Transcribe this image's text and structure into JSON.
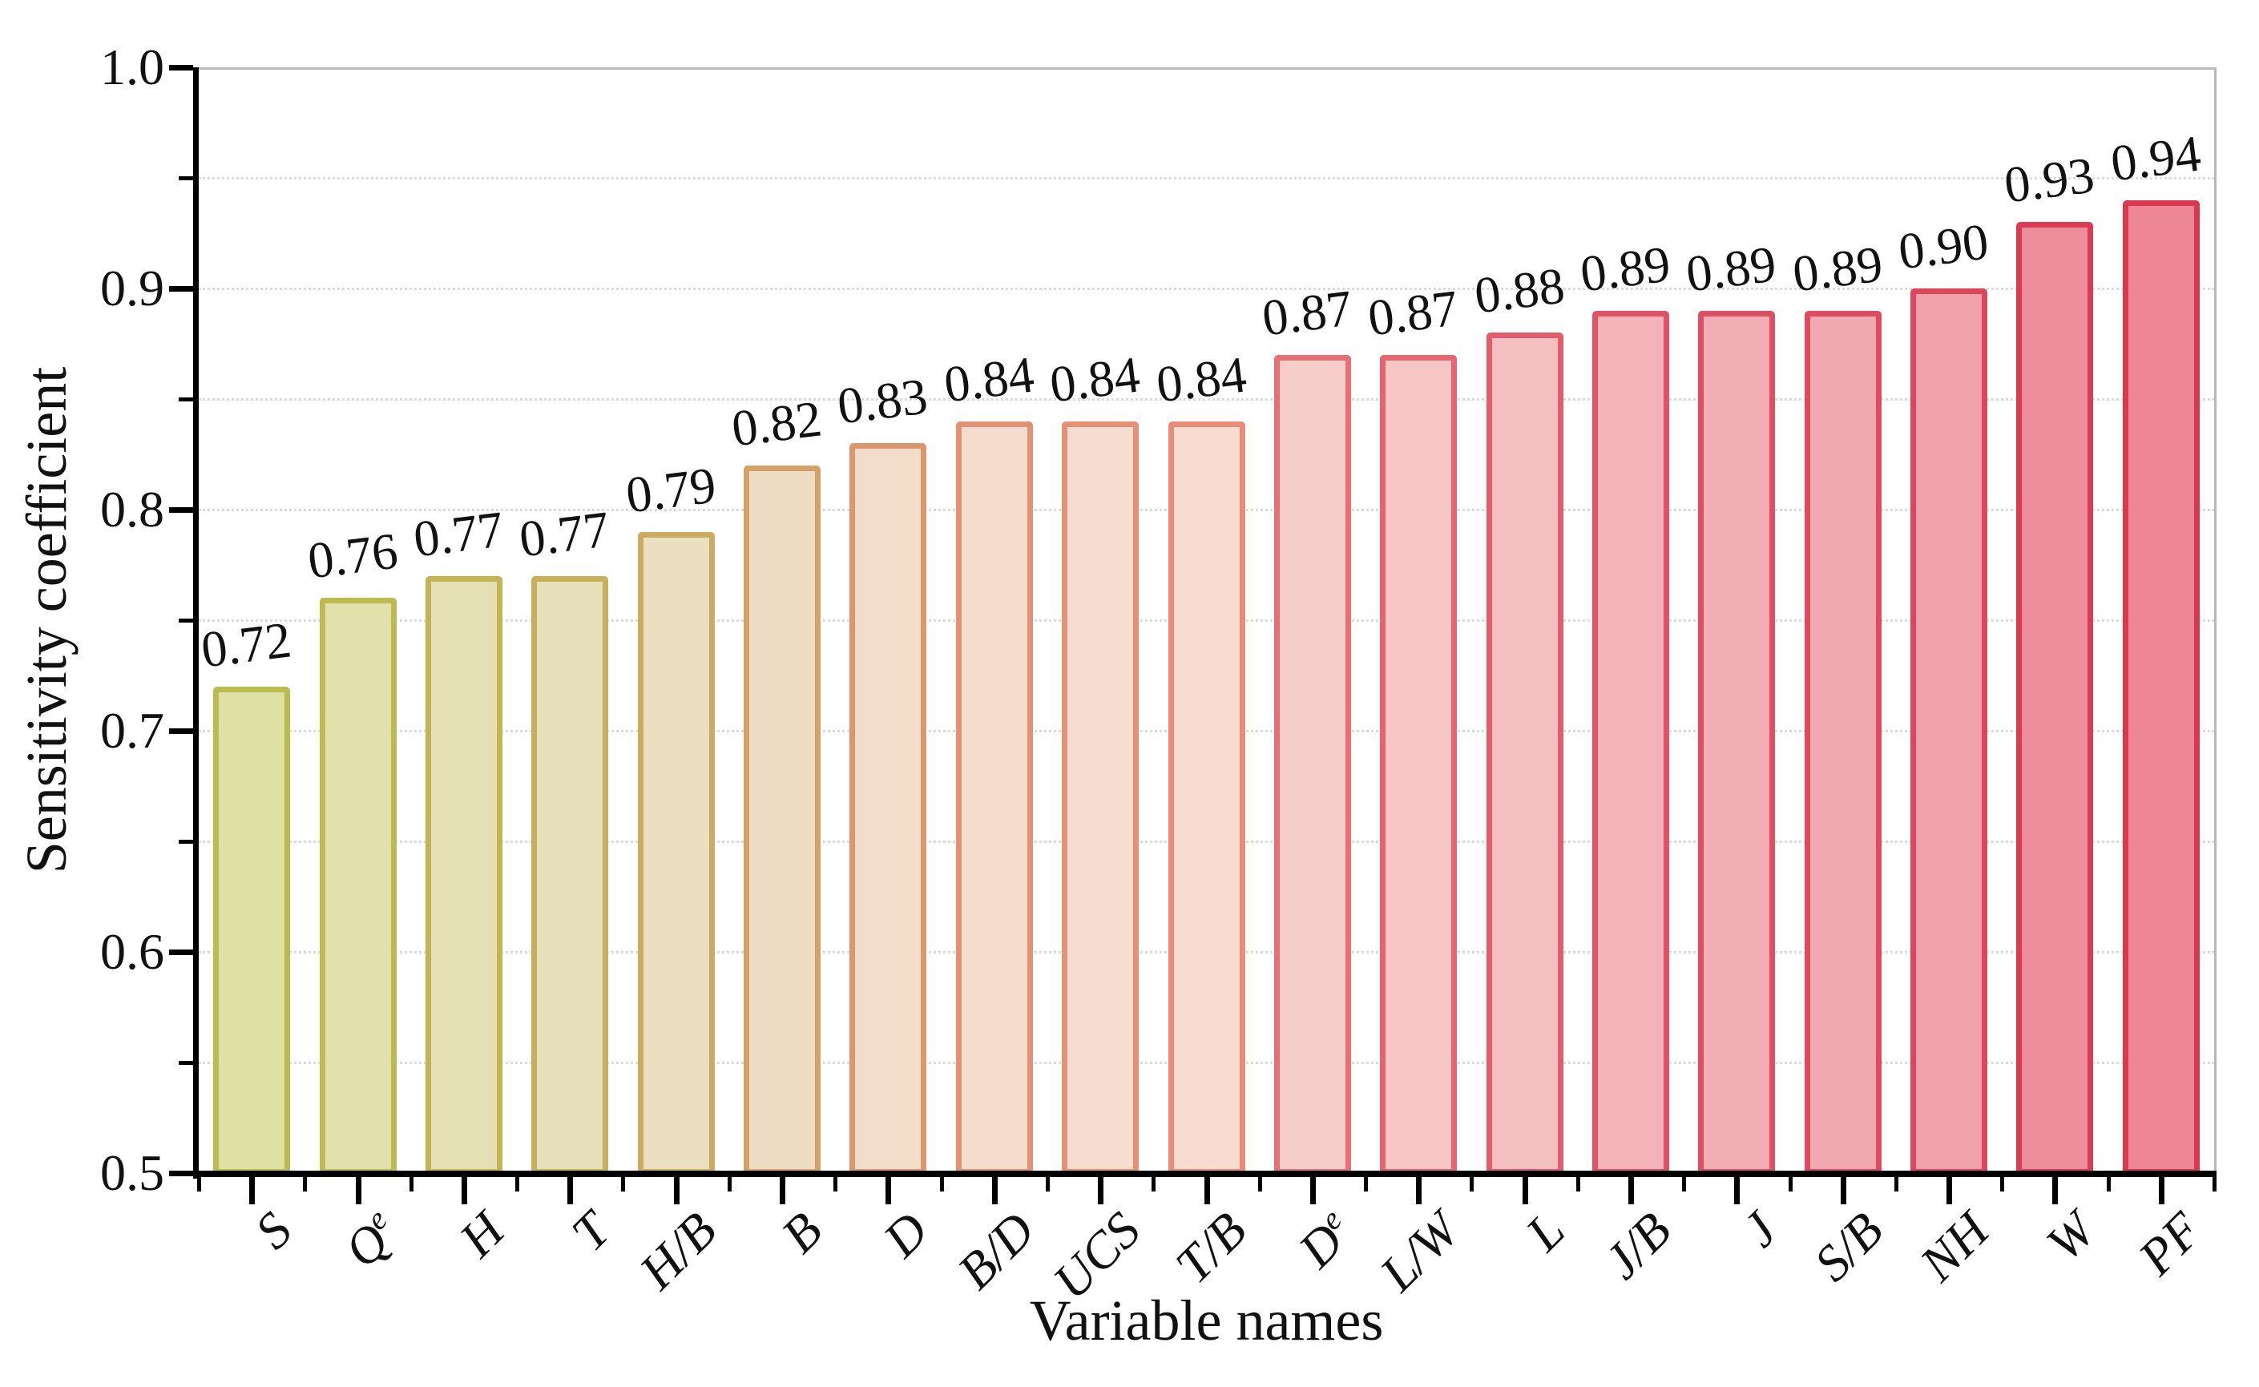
{
  "chart_data": {
    "type": "bar",
    "title": "",
    "xlabel": "Variable names",
    "ylabel": "Sensitivity coefficient",
    "ylim": [
      0.5,
      1.0
    ],
    "ytick_major_step": 0.1,
    "ytick_minor_step": 0.05,
    "ytick_labels": [
      "0.5",
      "0.6",
      "0.7",
      "0.8",
      "0.9",
      "1.0"
    ],
    "grid": "horizontal dotted lines at every 0.05",
    "legend": "none",
    "categories": [
      "S",
      "Q^e",
      "H",
      "T",
      "H/B",
      "B",
      "D",
      "B/D",
      "UCS",
      "T/B",
      "D^e",
      "L/W",
      "L",
      "J/B",
      "J",
      "S/B",
      "NH",
      "W",
      "PF"
    ],
    "values": [
      0.72,
      0.76,
      0.77,
      0.77,
      0.79,
      0.82,
      0.83,
      0.84,
      0.84,
      0.84,
      0.87,
      0.87,
      0.88,
      0.89,
      0.89,
      0.89,
      0.9,
      0.93,
      0.94
    ],
    "value_labels": [
      "0.72",
      "0.76",
      "0.77",
      "0.77",
      "0.79",
      "0.82",
      "0.83",
      "0.84",
      "0.84",
      "0.84",
      "0.87",
      "0.87",
      "0.88",
      "0.89",
      "0.89",
      "0.89",
      "0.90",
      "0.93",
      "0.94"
    ],
    "colors": {
      "bar_fills": [
        "#dee1a3",
        "#e2e0ab",
        "#e5e0b3",
        "#e7dfba",
        "#eadfc0",
        "#eeddc5",
        "#f2dcca",
        "#f5dccd",
        "#f7ddcf",
        "#f8dcd1",
        "#f6cdc9",
        "#f5c6c4",
        "#f4bfc0",
        "#f3b3b8",
        "#f2aeb4",
        "#f1a9b1",
        "#f0a2ac",
        "#ee8e9a",
        "#ed8795"
      ],
      "bar_borders": [
        "#b9bc4e",
        "#bfb951",
        "#c4b554",
        "#c8b05a",
        "#ccaa60",
        "#d4a266",
        "#dc976e",
        "#e29274",
        "#e69077",
        "#e88d79",
        "#e57177",
        "#e36672",
        "#e25c6b",
        "#e05367",
        "#df4f64",
        "#de4b61",
        "#dd475e",
        "#da3c55",
        "#d93850"
      ],
      "axis": "#000000",
      "grid": "#dcdcdc",
      "frame": "#b9b9b9",
      "text": "#111111"
    }
  }
}
